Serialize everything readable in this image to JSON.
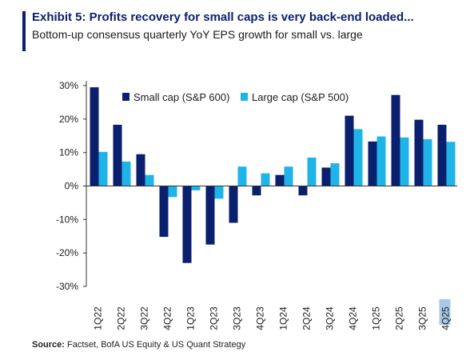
{
  "header": {
    "title": "Exhibit 5: Profits recovery for small caps is very back-end loaded...",
    "subtitle": "Bottom-up consensus quarterly YoY EPS growth for small vs. large"
  },
  "footer": {
    "source_label": "Source:",
    "source_text": "Factset, BofA US Equity & US Quant Strategy"
  },
  "colors": {
    "small_cap": "#0a1f6e",
    "large_cap": "#1fb4e8",
    "highlight": "#a9c7e8",
    "title": "#0a1f6e"
  },
  "chart_data": {
    "type": "bar",
    "categories": [
      "1Q22",
      "2Q22",
      "3Q22",
      "4Q22",
      "1Q23",
      "2Q23",
      "3Q23",
      "4Q23",
      "1Q24",
      "2Q24",
      "3Q24",
      "4Q24",
      "1Q25",
      "2Q25",
      "3Q25",
      "4Q25"
    ],
    "series": [
      {
        "name": "Small cap (S&P 600)",
        "values": [
          29.5,
          18.3,
          9.5,
          -15.2,
          -23.0,
          -17.5,
          -11.0,
          -2.8,
          3.3,
          -2.8,
          5.5,
          21.0,
          13.3,
          27.2,
          19.8,
          18.3
        ]
      },
      {
        "name": "Large cap (S&P 500)",
        "values": [
          10.2,
          7.3,
          3.3,
          -3.3,
          -1.3,
          -3.8,
          5.8,
          3.8,
          5.8,
          8.5,
          6.8,
          17.0,
          14.8,
          14.5,
          14.0,
          13.2
        ]
      }
    ],
    "y_ticks": [
      "30%",
      "20%",
      "10%",
      "0%",
      "-10%",
      "-20%",
      "-30%"
    ],
    "ylim": [
      -30,
      30
    ],
    "legend": "top-left",
    "grid": false,
    "highlighted_category": "4Q25"
  }
}
